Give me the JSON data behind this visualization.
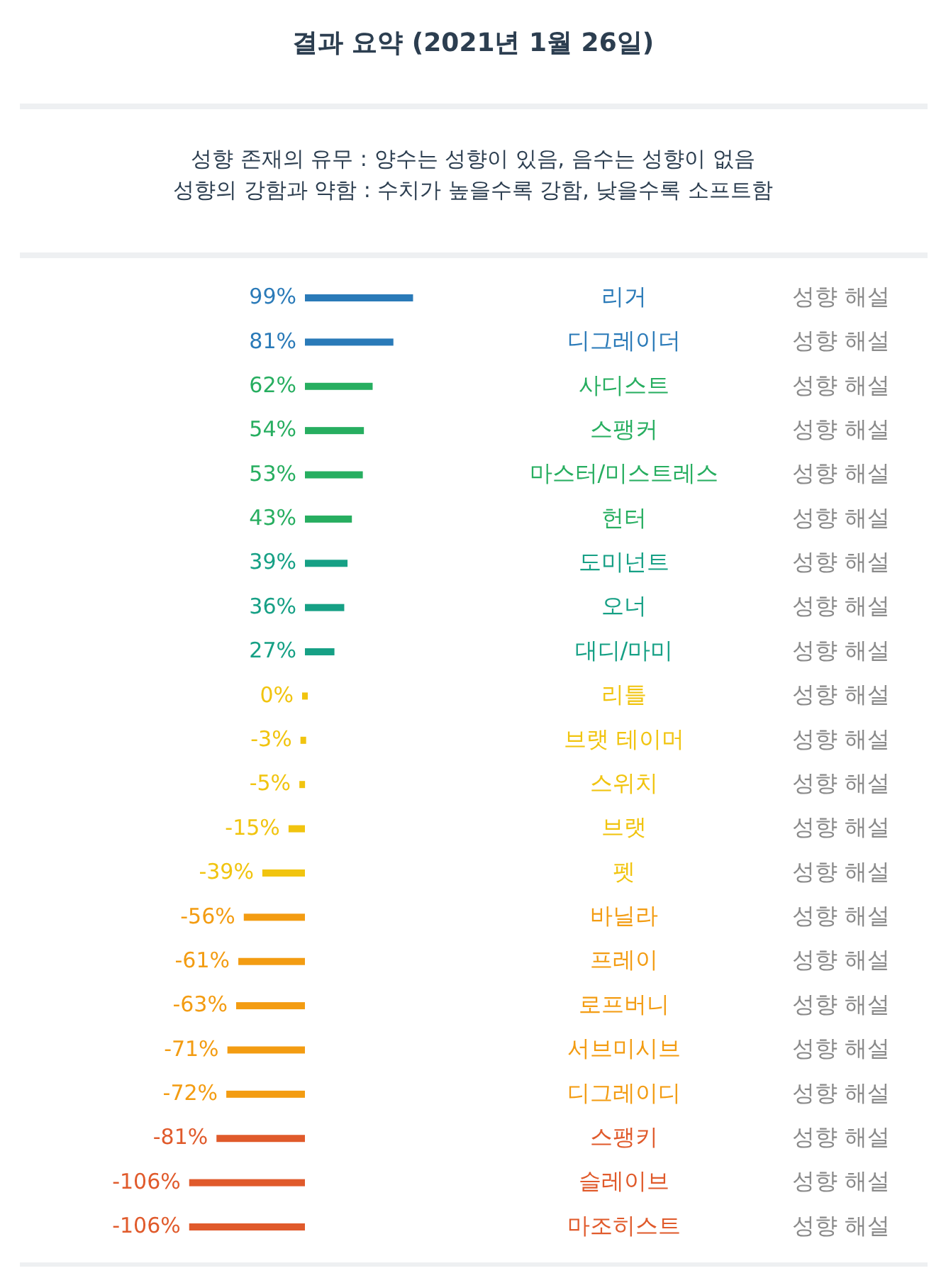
{
  "chart_data": {
    "type": "bar",
    "orientation": "horizontal",
    "title": "결과 요약 (2021년 1월 26일)",
    "subtitle": "성향 존재의 유무 : 양수는 성향이 있음, 음수는 성향이 없음\n성향의 강함과 약함 : 수치가 높을수록 강함, 낮을수록 소프트함",
    "categories": [
      "리거",
      "디그레이더",
      "사디스트",
      "스팽커",
      "마스터/미스트레스",
      "헌터",
      "도미넌트",
      "오너",
      "대디/마미",
      "리틀",
      "브랫 테이머",
      "스위치",
      "브랫",
      "펫",
      "바닐라",
      "프레이",
      "로프버니",
      "서브미시브",
      "디그레이디",
      "스팽키",
      "슬레이브",
      "마조히스트"
    ],
    "values": [
      99,
      81,
      62,
      54,
      53,
      43,
      39,
      36,
      27,
      0,
      -3,
      -5,
      -15,
      -39,
      -56,
      -61,
      -63,
      -71,
      -72,
      -81,
      -106,
      -106
    ],
    "value_labels": [
      "99%",
      "81%",
      "62%",
      "54%",
      "53%",
      "43%",
      "39%",
      "36%",
      "27%",
      "0%",
      "-3%",
      "-5%",
      "-15%",
      "-39%",
      "-56%",
      "-61%",
      "-63%",
      "-71%",
      "-72%",
      "-81%",
      "-106%",
      "-106%"
    ],
    "colors": [
      "#2a7ab8",
      "#2a7ab8",
      "#27ae60",
      "#27ae60",
      "#27ae60",
      "#27ae60",
      "#16a085",
      "#16a085",
      "#16a085",
      "#f1c40f",
      "#f1c40f",
      "#f1c40f",
      "#f1c40f",
      "#f1c40f",
      "#f39c12",
      "#f39c12",
      "#f39c12",
      "#f39c12",
      "#f39c12",
      "#e05a2b",
      "#e05a2b",
      "#e05a2b"
    ],
    "annotations": [
      "성향 해설",
      "성향 해설",
      "성향 해설",
      "성향 해설",
      "성향 해설",
      "성향 해설",
      "성향 해설",
      "성향 해설",
      "성향 해설",
      "성향 해설",
      "성향 해설",
      "성향 해설",
      "성향 해설",
      "성향 해설",
      "성향 해설",
      "성향 해설",
      "성향 해설",
      "성향 해설",
      "성향 해설",
      "성향 해설",
      "성향 해설",
      "성향 해설"
    ]
  }
}
